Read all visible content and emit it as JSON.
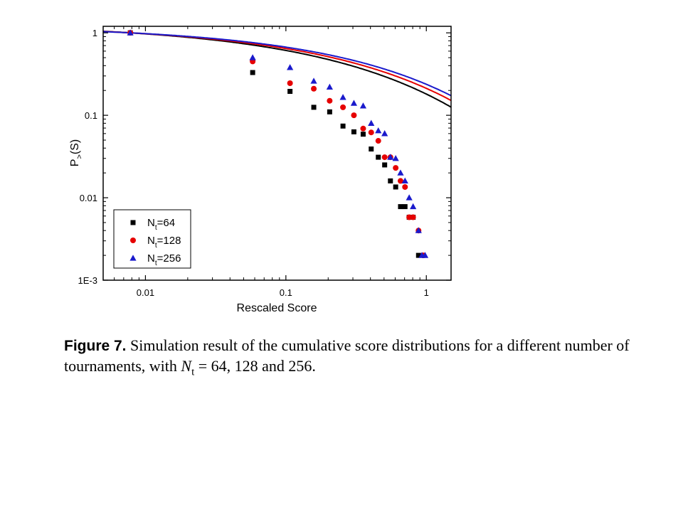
{
  "chart_data": {
    "type": "scatter",
    "xlabel": "Rescaled Score",
    "ylabel": {
      "main": "P",
      "sub": ">",
      "suffix": "(S)"
    },
    "x_scale": "log",
    "y_scale": "log",
    "xlim": [
      0.005,
      1.5
    ],
    "ylim": [
      0.001,
      1.2
    ],
    "x_ticks": [
      {
        "value": 0.01,
        "label": "0.01"
      },
      {
        "value": 0.1,
        "label": "0.1"
      },
      {
        "value": 1,
        "label": "1"
      }
    ],
    "y_ticks": [
      {
        "value": 1,
        "label": "1"
      },
      {
        "value": 0.1,
        "label": "0.1"
      },
      {
        "value": 0.01,
        "label": "0.01"
      },
      {
        "value": 0.001,
        "label": "1E-3"
      }
    ],
    "legend_position": "bottom-left",
    "grid": false,
    "series": [
      {
        "name": "N",
        "name_sub": "t",
        "name_suffix": "=64",
        "marker": "square",
        "color": "#000000",
        "x": [
          0.0078,
          0.058,
          0.107,
          0.158,
          0.205,
          0.255,
          0.305,
          0.355,
          0.405,
          0.455,
          0.505,
          0.555,
          0.605,
          0.655,
          0.705,
          0.755,
          0.805,
          0.88
        ],
        "y": [
          1.0,
          0.33,
          0.195,
          0.125,
          0.11,
          0.074,
          0.063,
          0.059,
          0.039,
          0.031,
          0.025,
          0.016,
          0.0135,
          0.0078,
          0.0078,
          0.0058,
          0.0058,
          0.002
        ],
        "fit": {
          "A": 1.0,
          "beta": 0.42,
          "S0": 0.2
        }
      },
      {
        "name": "N",
        "name_sub": "t",
        "name_suffix": "=128",
        "marker": "circle",
        "color": "#e60000",
        "x": [
          0.0078,
          0.058,
          0.107,
          0.158,
          0.205,
          0.255,
          0.305,
          0.355,
          0.405,
          0.455,
          0.505,
          0.555,
          0.605,
          0.655,
          0.705,
          0.755,
          0.805,
          0.88,
          0.95
        ],
        "y": [
          1.0,
          0.45,
          0.245,
          0.21,
          0.15,
          0.125,
          0.1,
          0.069,
          0.062,
          0.049,
          0.031,
          0.031,
          0.023,
          0.016,
          0.0135,
          0.0058,
          0.0058,
          0.004,
          0.002
        ],
        "fit": {
          "A": 1.0,
          "beta": 0.43,
          "S0": 0.265
        }
      },
      {
        "name": "N",
        "name_sub": "t",
        "name_suffix": "=256",
        "marker": "triangle",
        "color": "#1a1acc",
        "x": [
          0.0078,
          0.058,
          0.107,
          0.158,
          0.205,
          0.255,
          0.305,
          0.355,
          0.405,
          0.455,
          0.505,
          0.555,
          0.605,
          0.655,
          0.705,
          0.755,
          0.805,
          0.88,
          0.93,
          0.98
        ],
        "y": [
          1.0,
          0.5,
          0.38,
          0.26,
          0.22,
          0.165,
          0.14,
          0.13,
          0.08,
          0.065,
          0.06,
          0.031,
          0.03,
          0.02,
          0.016,
          0.01,
          0.0078,
          0.004,
          0.002,
          0.002
        ],
        "fit": {
          "A": 1.0,
          "beta": 0.44,
          "S0": 0.33
        }
      }
    ]
  },
  "caption": {
    "label": "Figure 7.",
    "text_before": " Simulation result of the cumulative score distributions for a different number of tournaments, with ",
    "math_var": "N",
    "math_sub": "t",
    "math_rest": " = 64, 128 and 256."
  }
}
